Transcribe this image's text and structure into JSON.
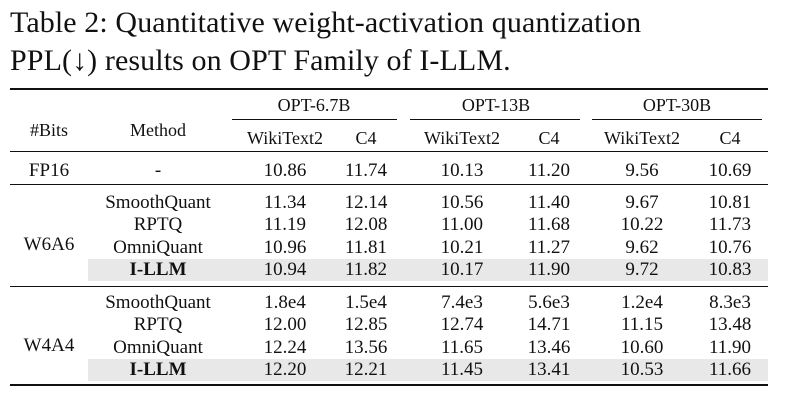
{
  "caption": {
    "line1": "Table 2:  Quantitative weight-activation quantization",
    "line2": "PPL(↓) results on OPT Family of I-LLM."
  },
  "header": {
    "bits": "#Bits",
    "method": "Method",
    "models": [
      "OPT-6.7B",
      "OPT-13B",
      "OPT-30B"
    ],
    "datasets": [
      "WikiText2",
      "C4",
      "WikiText2",
      "C4",
      "WikiText2",
      "C4"
    ]
  },
  "groups": [
    {
      "bits": "FP16",
      "rows": [
        {
          "method": "-",
          "values": [
            "10.86",
            "11.74",
            "10.13",
            "11.20",
            "9.56",
            "10.69"
          ]
        }
      ]
    },
    {
      "bits": "W6A6",
      "rows": [
        {
          "method": "SmoothQuant",
          "values": [
            "11.34",
            "12.14",
            "10.56",
            "11.40",
            "9.67",
            "10.81"
          ]
        },
        {
          "method": "RPTQ",
          "values": [
            "11.19",
            "12.08",
            "11.00",
            "11.68",
            "10.22",
            "11.73"
          ]
        },
        {
          "method": "OmniQuant",
          "values": [
            "10.96",
            "11.81",
            "10.21",
            "11.27",
            "9.62",
            "10.76"
          ]
        },
        {
          "method": "I-LLM",
          "values": [
            "10.94",
            "11.82",
            "10.17",
            "11.90",
            "9.72",
            "10.83"
          ],
          "highlight": true
        }
      ]
    },
    {
      "bits": "W4A4",
      "rows": [
        {
          "method": "SmoothQuant",
          "values": [
            "1.8e4",
            "1.5e4",
            "7.4e3",
            "5.6e3",
            "1.2e4",
            "8.3e3"
          ]
        },
        {
          "method": "RPTQ",
          "values": [
            "12.00",
            "12.85",
            "12.74",
            "14.71",
            "11.15",
            "13.48"
          ]
        },
        {
          "method": "OmniQuant",
          "values": [
            "12.24",
            "13.56",
            "11.65",
            "13.46",
            "10.60",
            "11.90"
          ]
        },
        {
          "method": "I-LLM",
          "values": [
            "12.20",
            "12.21",
            "11.45",
            "13.41",
            "10.53",
            "11.66"
          ],
          "highlight": true
        }
      ]
    }
  ]
}
